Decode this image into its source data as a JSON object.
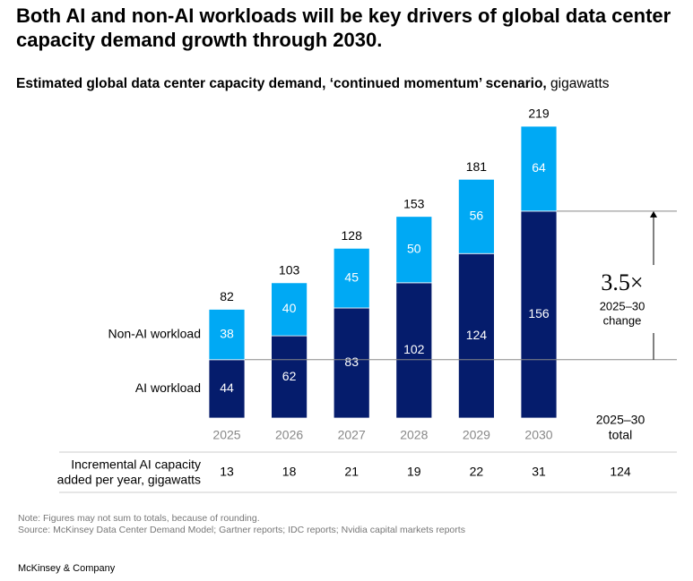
{
  "chart_data": {
    "type": "stacked_bar",
    "title": "Both AI and non-AI workloads will be key drivers of global data center capacity demand growth through 2030.",
    "subtitle": "Estimated global data center capacity demand, ‘continued momentum’ scenario,",
    "subtitle_unit": "gigawatts",
    "categories": [
      "2025",
      "2026",
      "2027",
      "2028",
      "2029",
      "2030"
    ],
    "series": [
      {
        "name": "AI workload",
        "color": "#051c6c",
        "values": [
          44,
          62,
          83,
          102,
          124,
          156
        ]
      },
      {
        "name": "Non-AI workload",
        "color": "#00a9f4",
        "values": [
          38,
          40,
          45,
          50,
          56,
          64
        ]
      }
    ],
    "totals": [
      82,
      103,
      128,
      153,
      181,
      219
    ],
    "ylim": [
      0,
      220
    ],
    "annotation": {
      "multiplier": "3.5×",
      "label": [
        "2025–30",
        "change"
      ]
    },
    "incremental": {
      "label": [
        "Incremental AI capacity",
        "added per year, gigawatts"
      ],
      "values": [
        13,
        18,
        21,
        19,
        22,
        31
      ],
      "total_label": [
        "2025–30",
        "total"
      ],
      "total": 124
    },
    "notes": [
      "Note: Figures may not sum to totals, because of rounding.",
      "Source: McKinsey Data Center Demand Model; Gartner reports; IDC reports; Nvidia capital markets reports"
    ],
    "footer": "McKinsey & Company"
  }
}
